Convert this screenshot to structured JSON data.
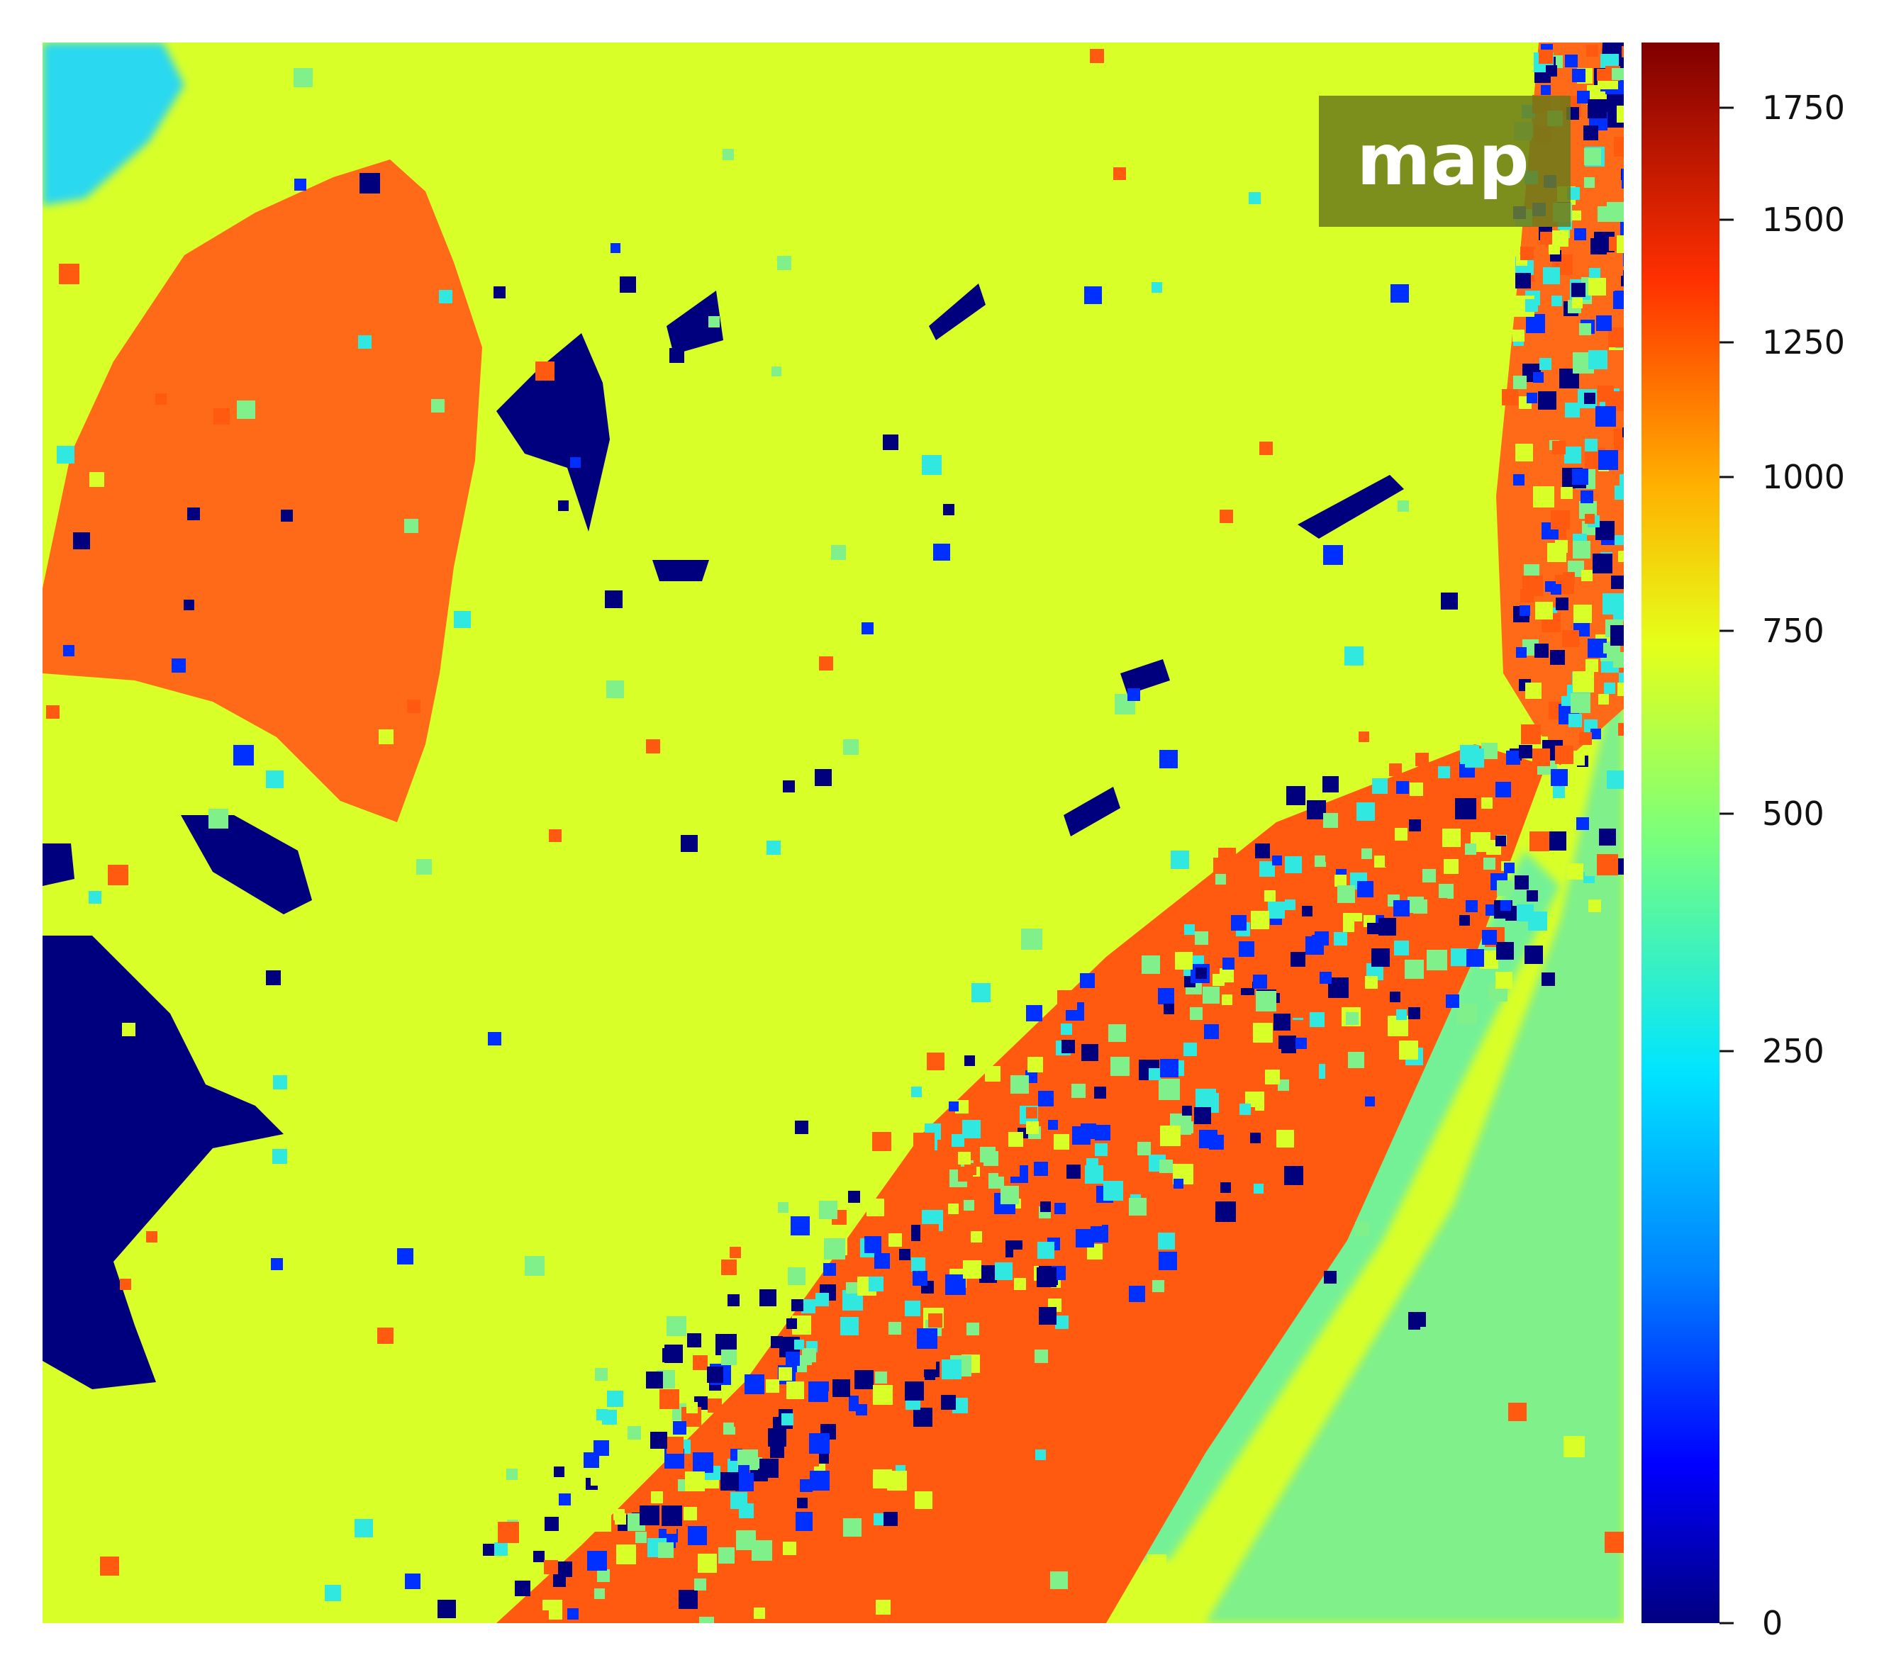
{
  "chart_data": {
    "type": "heatmap",
    "title": "map",
    "xlabel": "",
    "ylabel": "",
    "colormap": "jet",
    "colorbar": {
      "scale": "nonlinear",
      "range": [
        0,
        1850
      ],
      "ticks": [
        {
          "value": 0,
          "label": "0"
        },
        {
          "value": 250,
          "label": "250"
        },
        {
          "value": 500,
          "label": "500"
        },
        {
          "value": 750,
          "label": "750"
        },
        {
          "value": 1000,
          "label": "1000"
        },
        {
          "value": 1250,
          "label": "1250"
        },
        {
          "value": 1500,
          "label": "1500"
        },
        {
          "value": 1750,
          "label": "1750"
        }
      ]
    },
    "grid": false,
    "regions": [
      {
        "name": "background",
        "value": 740
      },
      {
        "name": "upper-left block",
        "value": 1320
      },
      {
        "name": "diagonal band",
        "value": 1300
      },
      {
        "name": "lower-right area",
        "value": 430
      },
      {
        "name": "dark patches",
        "value": 0
      }
    ]
  }
}
